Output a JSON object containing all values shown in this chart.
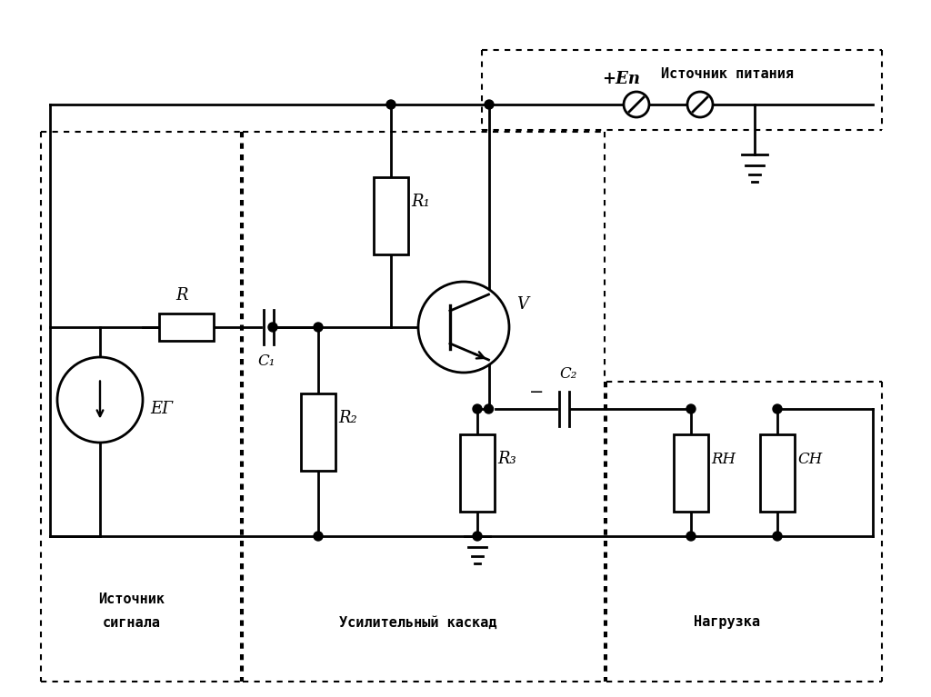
{
  "bg_color": "#ffffff",
  "labels": {
    "R": "R",
    "R1": "R₁",
    "R2": "R₂",
    "R3": "R₃",
    "C1": "C₁",
    "C2": "C₂",
    "RH": "RΗ",
    "CH": "CΗ",
    "EG": "EГ",
    "EP_plus": "+Eп",
    "V": "V",
    "source_line1": "Источник",
    "source_line2": "сигнала",
    "amplifier": "Усилительный каскад",
    "load": "Нагрузка",
    "power": "Источник питания",
    "minus": "−"
  },
  "figsize": [
    10.24,
    7.67
  ],
  "dpi": 100
}
